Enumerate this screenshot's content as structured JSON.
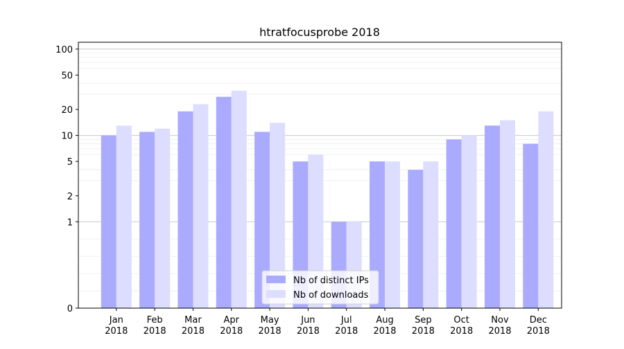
{
  "chart_data": {
    "type": "bar",
    "title": "htratfocusprobe 2018",
    "xlabel": "",
    "ylabel": "",
    "y_scale": "symlog",
    "ylim": [
      0,
      120
    ],
    "y_ticks": [
      0,
      1,
      2,
      5,
      10,
      20,
      50,
      100
    ],
    "y_tick_labels": [
      "0",
      "1",
      "2",
      "5",
      "10",
      "20",
      "50",
      "100"
    ],
    "grid": "horizontal, major and minor",
    "legend_position": "bottom-center",
    "categories": [
      "Jan\n2018",
      "Feb\n2018",
      "Mar\n2018",
      "Apr\n2018",
      "May\n2018",
      "Jun\n2018",
      "Jul\n2018",
      "Aug\n2018",
      "Sep\n2018",
      "Oct\n2018",
      "Nov\n2018",
      "Dec\n2018"
    ],
    "series": [
      {
        "name": "Nb of distinct IPs",
        "color": "#aaaaff",
        "values": [
          10,
          11,
          19,
          28,
          11,
          5,
          1,
          5,
          4,
          9,
          13,
          8
        ]
      },
      {
        "name": "Nb of downloads",
        "color": "#ddddff",
        "values": [
          13,
          12,
          23,
          33,
          14,
          6,
          1,
          5,
          5,
          10,
          15,
          19
        ]
      }
    ]
  }
}
